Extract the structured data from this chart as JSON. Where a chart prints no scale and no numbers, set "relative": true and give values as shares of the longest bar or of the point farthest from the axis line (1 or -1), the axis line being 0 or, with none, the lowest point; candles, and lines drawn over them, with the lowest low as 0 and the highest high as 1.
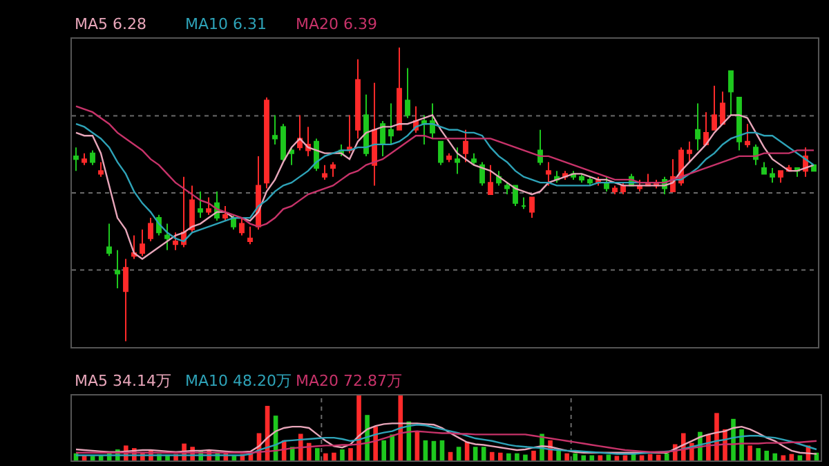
{
  "chart_data": [
    {
      "type": "candlestick",
      "relative": true,
      "grid": "y",
      "categories": [
        null,
        null,
        null,
        null,
        null,
        null,
        null,
        null,
        null,
        null,
        null,
        null,
        null,
        null,
        null,
        null,
        null,
        null,
        null,
        null,
        null,
        null,
        null,
        null,
        null,
        null,
        null,
        null,
        null,
        null,
        null,
        null,
        null,
        null,
        null,
        null,
        null,
        null,
        null,
        null,
        null,
        null,
        null,
        null,
        null,
        null,
        null,
        null,
        null,
        null,
        null,
        null,
        null,
        null,
        null,
        null,
        null,
        null,
        null,
        null,
        null,
        null,
        null,
        null,
        null,
        null,
        null,
        null,
        null,
        null,
        null,
        null,
        null,
        null,
        null,
        null,
        null,
        null,
        null,
        null,
        null,
        null,
        null,
        null,
        null,
        null,
        null,
        null,
        null,
        null
      ],
      "series": [
        {
          "type": "candlestick",
          "ohlc": [
            [
              0.63,
              0.66,
              0.58,
              0.62
            ],
            [
              0.61,
              0.64,
              0.6,
              0.62
            ],
            [
              0.64,
              0.65,
              0.6,
              0.61
            ],
            [
              0.57,
              0.61,
              0.56,
              0.58
            ],
            [
              0.32,
              0.4,
              0.29,
              0.3
            ],
            [
              0.24,
              0.31,
              0.18,
              0.23
            ],
            [
              0.17,
              0.28,
              0,
              0.25
            ],
            [
              0.29,
              0.36,
              0.28,
              0.3
            ],
            [
              0.3,
              0.38,
              0.29,
              0.33
            ],
            [
              0.35,
              0.42,
              0.34,
              0.4
            ],
            [
              0.42,
              0.43,
              0.36,
              0.37
            ],
            [
              0.36,
              0.4,
              0.31,
              0.35
            ],
            [
              0.33,
              0.37,
              0.31,
              0.34
            ],
            [
              0.33,
              0.56,
              0.32,
              0.37
            ],
            [
              0.38,
              0.53,
              0.37,
              0.48
            ],
            [
              0.45,
              0.51,
              0.42,
              0.44
            ],
            [
              0.44,
              0.49,
              0.43,
              0.45
            ],
            [
              0.47,
              0.51,
              0.41,
              0.42
            ],
            [
              0.42,
              0.46,
              0.41,
              0.43
            ],
            [
              0.42,
              0.43,
              0.38,
              0.39
            ],
            [
              0.37,
              0.42,
              0.36,
              0.4
            ],
            [
              0.34,
              0.39,
              0.33,
              0.35
            ],
            [
              0.39,
              0.63,
              0.38,
              0.53
            ],
            [
              0.54,
              0.83,
              0.52,
              0.82
            ],
            [
              0.7,
              0.77,
              0.67,
              0.69
            ],
            [
              0.73,
              0.74,
              0.61,
              0.62
            ],
            [
              0.65,
              0.66,
              0.6,
              0.64
            ],
            [
              0.66,
              0.77,
              0.65,
              0.69
            ],
            [
              0.65,
              0.73,
              0.63,
              0.67
            ],
            [
              0.68,
              0.69,
              0.58,
              0.59
            ],
            [
              0.56,
              0.6,
              0.55,
              0.57
            ],
            [
              0.59,
              0.61,
              0.56,
              0.6
            ],
            [
              0.65,
              0.67,
              0.63,
              0.64
            ],
            [
              0.65,
              0.77,
              0.64,
              0.66
            ],
            [
              0.72,
              0.96,
              0.69,
              0.89
            ],
            [
              0.77,
              0.84,
              0.63,
              0.64
            ],
            [
              0.6,
              0.88,
              0.53,
              0.72
            ],
            [
              0.74,
              0.75,
              0.63,
              0.67
            ],
            [
              0.72,
              0.81,
              0.67,
              0.7
            ],
            [
              0.72,
              1,
              0.72,
              0.86
            ],
            [
              0.82,
              0.93,
              0.76,
              0.77
            ],
            [
              0.72,
              0.8,
              0.71,
              0.75
            ],
            [
              0.75,
              0.77,
              0.67,
              0.74
            ],
            [
              0.75,
              0.81,
              0.69,
              0.71
            ],
            [
              0.68,
              0.68,
              0.6,
              0.61
            ],
            [
              0.62,
              0.64,
              0.61,
              0.63
            ],
            [
              0.62,
              0.66,
              0.57,
              0.61
            ],
            [
              0.64,
              0.72,
              0.61,
              0.68
            ],
            [
              0.62,
              0.64,
              0.6,
              0.61
            ],
            [
              0.6,
              0.61,
              0.53,
              0.54
            ],
            [
              0.5,
              0.6,
              0.5,
              0.54
            ],
            [
              0.56,
              0.58,
              0.53,
              0.54
            ],
            [
              0.53,
              0.54,
              0.5,
              0.52
            ],
            [
              0.53,
              0.53,
              0.46,
              0.47
            ],
            [
              0.46,
              0.49,
              0.45,
              0.46
            ],
            [
              0.44,
              0.49,
              0.42,
              0.49
            ],
            [
              0.65,
              0.72,
              0.6,
              0.61
            ],
            [
              0.57,
              0.61,
              0.53,
              0.58
            ],
            [
              0.56,
              0.58,
              0.54,
              0.55
            ],
            [
              0.56,
              0.58,
              0.55,
              0.57
            ],
            [
              0.57,
              0.58,
              0.55,
              0.56
            ],
            [
              0.56,
              0.57,
              0.54,
              0.55
            ],
            [
              0.55,
              0.56,
              0.53,
              0.54
            ],
            [
              0.54,
              0.56,
              0.53,
              0.55
            ],
            [
              0.54,
              0.56,
              0.51,
              0.52
            ],
            [
              0.51,
              0.53,
              0.5,
              0.52
            ],
            [
              0.51,
              0.54,
              0.5,
              0.53
            ],
            [
              0.56,
              0.57,
              0.53,
              0.53
            ],
            [
              0.52,
              0.55,
              0.51,
              0.53
            ],
            [
              0.53,
              0.57,
              0.53,
              0.54
            ],
            [
              0.53,
              0.55,
              0.52,
              0.54
            ],
            [
              0.55,
              0.56,
              0.5,
              0.52
            ],
            [
              0.51,
              0.62,
              0.51,
              0.56
            ],
            [
              0.54,
              0.66,
              0.53,
              0.65
            ],
            [
              0.64,
              0.68,
              0.61,
              0.65
            ],
            [
              0.72,
              0.81,
              0.65,
              0.69
            ],
            [
              0.67,
              0.78,
              0.67,
              0.71
            ],
            [
              0.72,
              0.87,
              0.72,
              0.77
            ],
            [
              0.74,
              0.85,
              0.74,
              0.81
            ],
            [
              0.92,
              0.92,
              0.77,
              0.85
            ],
            [
              0.83,
              0.83,
              0.65,
              0.68
            ],
            [
              0.67,
              0.74,
              0.66,
              0.68
            ],
            [
              0.66,
              0.67,
              0.6,
              0.62
            ],
            [
              0.59,
              0.61,
              0.57,
              0.57
            ],
            [
              0.57,
              0.59,
              0.54,
              0.56
            ],
            [
              0.56,
              0.58,
              0.54,
              0.58
            ],
            [
              0.58,
              0.6,
              0.58,
              0.59
            ],
            [
              0.59,
              0.59,
              0.56,
              0.58
            ],
            [
              0.58,
              0.66,
              0.56,
              0.63
            ],
            [
              0.6,
              0.6,
              0.58,
              0.58
            ]
          ]
        },
        {
          "type": "line",
          "name": "MA5 6.28",
          "color": "#e8a6ba",
          "values": [
            0.71,
            0.7,
            0.7,
            0.64,
            0.53,
            0.42,
            0.38,
            0.3,
            0.28,
            0.3,
            0.32,
            0.34,
            0.36,
            0.37,
            0.39,
            0.4,
            0.42,
            0.44,
            0.44,
            0.42,
            0.42,
            0.41,
            0.44,
            0.51,
            0.55,
            0.61,
            0.66,
            0.69,
            0.66,
            0.65,
            0.64,
            0.64,
            0.64,
            0.62,
            0.68,
            0.71,
            0.72,
            0.73,
            0.73,
            0.74,
            0.74,
            0.75,
            0.76,
            0.77,
            0.72,
            0.68,
            0.64,
            0.62,
            0.6,
            0.59,
            0.58,
            0.56,
            0.54,
            0.52,
            0.51,
            0.5,
            0.51,
            0.54,
            0.55,
            0.56,
            0.57,
            0.57,
            0.56,
            0.55,
            0.55,
            0.54,
            0.53,
            0.53,
            0.53,
            0.53,
            0.53,
            0.53,
            0.54,
            0.58,
            0.61,
            0.64,
            0.67,
            0.71,
            0.74,
            0.77,
            0.77,
            0.76,
            0.71,
            0.66,
            0.62,
            0.6,
            0.58,
            0.58,
            0.59,
            0.6
          ]
        },
        {
          "type": "line",
          "name": "MA10 6.31",
          "color": "#2ea3b8",
          "values": [
            0.74,
            0.73,
            0.71,
            0.69,
            0.66,
            0.61,
            0.57,
            0.51,
            0.47,
            0.44,
            0.4,
            0.37,
            0.35,
            0.34,
            0.37,
            0.38,
            0.39,
            0.4,
            0.41,
            0.42,
            0.42,
            0.42,
            0.46,
            0.48,
            0.51,
            0.53,
            0.54,
            0.56,
            0.58,
            0.61,
            0.63,
            0.64,
            0.65,
            0.65,
            0.66,
            0.66,
            0.67,
            0.67,
            0.67,
            0.68,
            0.7,
            0.73,
            0.74,
            0.74,
            0.73,
            0.72,
            0.72,
            0.71,
            0.71,
            0.7,
            0.66,
            0.63,
            0.61,
            0.58,
            0.56,
            0.55,
            0.54,
            0.54,
            0.53,
            0.53,
            0.53,
            0.53,
            0.53,
            0.54,
            0.54,
            0.54,
            0.54,
            0.54,
            0.54,
            0.54,
            0.54,
            0.54,
            0.55,
            0.55,
            0.57,
            0.59,
            0.62,
            0.64,
            0.67,
            0.69,
            0.7,
            0.71,
            0.71,
            0.7,
            0.7,
            0.68,
            0.66,
            0.64,
            0.62,
            0.6
          ]
        },
        {
          "type": "line",
          "name": "MA20 6.39",
          "color": "#c8336a",
          "values": [
            0.8,
            0.79,
            0.78,
            0.76,
            0.74,
            0.71,
            0.69,
            0.67,
            0.65,
            0.62,
            0.6,
            0.57,
            0.54,
            0.52,
            0.5,
            0.48,
            0.47,
            0.45,
            0.44,
            0.43,
            0.42,
            0.4,
            0.39,
            0.4,
            0.42,
            0.45,
            0.46,
            0.48,
            0.5,
            0.51,
            0.52,
            0.53,
            0.55,
            0.57,
            0.58,
            0.6,
            0.61,
            0.62,
            0.64,
            0.66,
            0.68,
            0.7,
            0.7,
            0.69,
            0.69,
            0.69,
            0.69,
            0.69,
            0.69,
            0.69,
            0.69,
            0.68,
            0.67,
            0.66,
            0.65,
            0.64,
            0.63,
            0.63,
            0.62,
            0.61,
            0.6,
            0.59,
            0.58,
            0.57,
            0.56,
            0.55,
            0.55,
            0.55,
            0.54,
            0.54,
            0.54,
            0.54,
            0.55,
            0.56,
            0.57,
            0.58,
            0.59,
            0.6,
            0.61,
            0.62,
            0.63,
            0.63,
            0.63,
            0.64,
            0.64,
            0.64,
            0.64,
            0.65,
            0.65,
            0.65
          ]
        }
      ]
    },
    {
      "type": "bar",
      "relative": true,
      "grid": "x",
      "categories": [
        null,
        null,
        null,
        null,
        null,
        null,
        null,
        null,
        null,
        null,
        null,
        null,
        null,
        null,
        null,
        null,
        null,
        null,
        null,
        null,
        null,
        null,
        null,
        null,
        null,
        null,
        null,
        null,
        null,
        null,
        null,
        null,
        null,
        null,
        null,
        null,
        null,
        null,
        null,
        null,
        null,
        null,
        null,
        null,
        null,
        null,
        null,
        null,
        null,
        null,
        null,
        null,
        null,
        null,
        null,
        null,
        null,
        null,
        null,
        null,
        null,
        null,
        null,
        null,
        null,
        null,
        null,
        null,
        null,
        null,
        null,
        null,
        null,
        null,
        null,
        null,
        null,
        null,
        null,
        null,
        null,
        null,
        null,
        null,
        null,
        null,
        null,
        null,
        null,
        null
      ],
      "series": [
        {
          "type": "bar",
          "values": [
            0.11,
            0.08,
            0.07,
            0.08,
            0.11,
            0.17,
            0.23,
            0.19,
            0.13,
            0.15,
            0.1,
            0.09,
            0.1,
            0.26,
            0.21,
            0.15,
            0.15,
            0.13,
            0.12,
            0.08,
            0.1,
            0.11,
            0.42,
            0.84,
            0.69,
            0.31,
            0.21,
            0.41,
            0.27,
            0.19,
            0.11,
            0.12,
            0.17,
            0.19,
            1,
            0.7,
            0.52,
            0.31,
            0.4,
            1,
            0.6,
            0.44,
            0.31,
            0.3,
            0.31,
            0.13,
            0.21,
            0.29,
            0.21,
            0.21,
            0.13,
            0.12,
            0.11,
            0.11,
            0.09,
            0.15,
            0.41,
            0.31,
            0.15,
            0.11,
            0.11,
            0.08,
            0.08,
            0.08,
            0.09,
            0.07,
            0.08,
            0.1,
            0.08,
            0.1,
            0.09,
            0.11,
            0.25,
            0.42,
            0.27,
            0.44,
            0.4,
            0.73,
            0.48,
            0.64,
            0.48,
            0.23,
            0.19,
            0.15,
            0.11,
            0.08,
            0.1,
            0.08,
            0.23,
            0.12
          ],
          "colors": [
            "#1ec81e",
            "#ff2a2a",
            "#1ec81e",
            "#1ec81e",
            "#1ec81e",
            "#1ec81e",
            "#ff2a2a",
            "#ff2a2a",
            "#ff2a2a",
            "#ff2a2a",
            "#1ec81e",
            "#1ec81e",
            "#ff2a2a",
            "#ff2a2a",
            "#ff2a2a",
            "#1ec81e",
            "#ff2a2a",
            "#1ec81e",
            "#ff2a2a",
            "#1ec81e",
            "#ff2a2a",
            "#ff2a2a",
            "#ff2a2a",
            "#ff2a2a",
            "#1ec81e",
            "#ff2a2a",
            "#1ec81e",
            "#ff2a2a",
            "#ff2a2a",
            "#1ec81e",
            "#ff2a2a",
            "#ff2a2a",
            "#1ec81e",
            "#ff2a2a",
            "#ff2a2a",
            "#1ec81e",
            "#ff2a2a",
            "#1ec81e",
            "#1ec81e",
            "#ff2a2a",
            "#1ec81e",
            "#ff2a2a",
            "#1ec81e",
            "#1ec81e",
            "#1ec81e",
            "#ff2a2a",
            "#1ec81e",
            "#ff2a2a",
            "#1ec81e",
            "#1ec81e",
            "#ff2a2a",
            "#ff2a2a",
            "#1ec81e",
            "#1ec81e",
            "#1ec81e",
            "#ff2a2a",
            "#1ec81e",
            "#ff2a2a",
            "#1ec81e",
            "#ff2a2a",
            "#1ec81e",
            "#1ec81e",
            "#1ec81e",
            "#ff2a2a",
            "#1ec81e",
            "#ff2a2a",
            "#ff2a2a",
            "#1ec81e",
            "#ff2a2a",
            "#ff2a2a",
            "#ff2a2a",
            "#1ec81e",
            "#ff2a2a",
            "#ff2a2a",
            "#ff2a2a",
            "#1ec81e",
            "#ff2a2a",
            "#ff2a2a",
            "#ff2a2a",
            "#1ec81e",
            "#1ec81e",
            "#ff2a2a",
            "#1ec81e",
            "#1ec81e",
            "#1ec81e",
            "#ff2a2a",
            "#ff2a2a",
            "#1ec81e",
            "#ff2a2a",
            "#1ec81e"
          ]
        },
        {
          "type": "line",
          "name": "MA5 34.14万",
          "color": "#e8a6ba",
          "values": [
            0.17,
            0.16,
            0.15,
            0.14,
            0.13,
            0.13,
            0.14,
            0.15,
            0.16,
            0.16,
            0.15,
            0.14,
            0.13,
            0.14,
            0.15,
            0.15,
            0.16,
            0.15,
            0.14,
            0.13,
            0.13,
            0.14,
            0.22,
            0.35,
            0.45,
            0.5,
            0.52,
            0.52,
            0.5,
            0.4,
            0.3,
            0.22,
            0.2,
            0.25,
            0.38,
            0.48,
            0.53,
            0.56,
            0.57,
            0.57,
            0.57,
            0.57,
            0.56,
            0.55,
            0.5,
            0.42,
            0.35,
            0.28,
            0.25,
            0.24,
            0.22,
            0.2,
            0.18,
            0.16,
            0.17,
            0.2,
            0.22,
            0.21,
            0.18,
            0.15,
            0.13,
            0.12,
            0.12,
            0.12,
            0.12,
            0.12,
            0.12,
            0.12,
            0.12,
            0.12,
            0.12,
            0.12,
            0.18,
            0.24,
            0.3,
            0.36,
            0.4,
            0.43,
            0.45,
            0.5,
            0.52,
            0.48,
            0.42,
            0.35,
            0.3,
            0.22,
            0.15,
            0.12,
            0.11,
            0.1
          ]
        },
        {
          "type": "line",
          "name": "MA10 48.20万",
          "color": "#2ea3b8",
          "values": [
            0.08,
            0.08,
            0.08,
            0.08,
            0.08,
            0.08,
            0.08,
            0.08,
            0.08,
            0.08,
            0.08,
            0.08,
            0.08,
            0.08,
            0.08,
            0.08,
            0.08,
            0.08,
            0.08,
            0.08,
            0.08,
            0.1,
            0.16,
            0.2,
            0.24,
            0.3,
            0.31,
            0.32,
            0.33,
            0.34,
            0.35,
            0.35,
            0.33,
            0.3,
            0.32,
            0.36,
            0.4,
            0.43,
            0.45,
            0.5,
            0.53,
            0.55,
            0.54,
            0.51,
            0.48,
            0.45,
            0.42,
            0.38,
            0.34,
            0.32,
            0.3,
            0.27,
            0.24,
            0.22,
            0.21,
            0.2,
            0.19,
            0.17,
            0.16,
            0.15,
            0.15,
            0.14,
            0.13,
            0.12,
            0.11,
            0.1,
            0.1,
            0.1,
            0.11,
            0.12,
            0.13,
            0.14,
            0.15,
            0.18,
            0.21,
            0.24,
            0.27,
            0.3,
            0.32,
            0.35,
            0.37,
            0.38,
            0.38,
            0.36,
            0.35,
            0.32,
            0.29,
            0.25,
            0.21,
            0.17
          ]
        },
        {
          "type": "line",
          "name": "MA20 72.87万",
          "color": "#c8336a",
          "values": [
            0.12,
            0.12,
            0.12,
            0.12,
            0.12,
            0.12,
            0.12,
            0.12,
            0.12,
            0.12,
            0.12,
            0.12,
            0.12,
            0.12,
            0.12,
            0.12,
            0.12,
            0.12,
            0.12,
            0.12,
            0.12,
            0.12,
            0.13,
            0.14,
            0.15,
            0.17,
            0.19,
            0.2,
            0.21,
            0.22,
            0.23,
            0.23,
            0.24,
            0.24,
            0.25,
            0.27,
            0.3,
            0.34,
            0.38,
            0.42,
            0.44,
            0.45,
            0.44,
            0.43,
            0.42,
            0.42,
            0.41,
            0.41,
            0.4,
            0.4,
            0.4,
            0.4,
            0.4,
            0.4,
            0.4,
            0.38,
            0.36,
            0.34,
            0.32,
            0.3,
            0.28,
            0.26,
            0.24,
            0.22,
            0.2,
            0.18,
            0.16,
            0.15,
            0.14,
            0.13,
            0.13,
            0.13,
            0.15,
            0.17,
            0.19,
            0.21,
            0.23,
            0.24,
            0.25,
            0.25,
            0.26,
            0.26,
            0.26,
            0.27,
            0.27,
            0.27,
            0.28,
            0.28,
            0.29,
            0.3
          ]
        }
      ]
    }
  ]
}
